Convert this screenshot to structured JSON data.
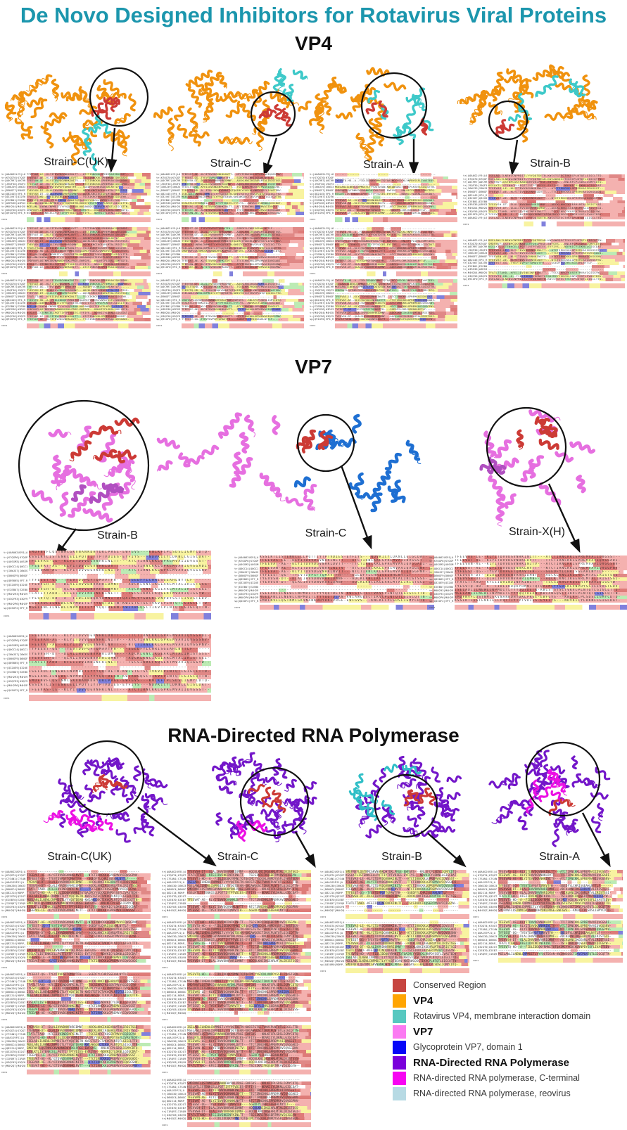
{
  "title": "De Novo Designed Inhibitors for Rotavirus Viral Proteins",
  "title_color": "#1B96AD",
  "sections": [
    {
      "id": "vp4",
      "title": "VP4",
      "strains": [
        "Strain-C(UK)",
        "Strain-C",
        "Strain-A",
        "Strain-B"
      ]
    },
    {
      "id": "vp7",
      "title": "VP7",
      "strains": [
        "Strain-B",
        "Strain-C",
        "Strain-X(H)"
      ]
    },
    {
      "id": "rdrp",
      "title": "RNA-Directed RNA Polymerase",
      "strains": [
        "Strain-C(UK)",
        "Strain-C",
        "Strain-B",
        "Strain-A"
      ]
    }
  ],
  "legend": {
    "items": [
      {
        "label": "Conserved Region",
        "color": "#C64540",
        "bold": false
      },
      {
        "label": "VP4",
        "color": "#FFA502",
        "bold": true
      },
      {
        "label": "Rotavirus VP4, membrane interaction domain",
        "color": "#57C8C0",
        "bold": false
      },
      {
        "label": "VP7",
        "color": "#FB7AF2",
        "bold": true
      },
      {
        "label": "Glycoprotein VP7, domain 1",
        "color": "#0707F8",
        "bold": false
      },
      {
        "label": "RNA-Directed RNA Polymerase",
        "color": "#7A00DB",
        "bold": true
      },
      {
        "label": "RNA-directed RNA polymerase, C-terminal",
        "color": "#F705F2",
        "bold": false
      },
      {
        "label": "RNA-directed RNA polymerase, reovirus",
        "color": "#B7DAE4",
        "bold": false
      }
    ]
  },
  "structure_colors": {
    "vp4_main": "#F0920E",
    "vp4_membrane": "#3EC9C9",
    "conserved": "#CC3A35",
    "vp7_main": "#E66FE0",
    "vp7_deep": "#B04FC0",
    "vp7_domain1": "#1E6FD2",
    "rdrp_main": "#7316C9",
    "rdrp_cterm": "#EC0FE4",
    "rdrp_reovirus": "#30BFC7"
  },
  "alignment": {
    "cons_label": "cons",
    "palette": {
      "yellow": "#F8F3A0",
      "pink": "#F4B1AF",
      "red": "#E08886",
      "deep": "#DE7B78",
      "green": "#BCEBB4",
      "blue": "#8080DC",
      "white": "#FFFFFF"
    },
    "profiles": {
      "yp": [
        [
          "yellow",
          30
        ],
        [
          "pink",
          25
        ],
        [
          "white",
          14
        ],
        [
          "green",
          7
        ],
        [
          "red",
          12
        ],
        [
          "blue",
          3
        ],
        [
          "deep",
          9
        ]
      ],
      "pink": [
        [
          "pink",
          48
        ],
        [
          "red",
          16
        ],
        [
          "deep",
          14
        ],
        [
          "yellow",
          12
        ],
        [
          "white",
          6
        ],
        [
          "green",
          3
        ],
        [
          "blue",
          1
        ]
      ],
      "pink2": [
        [
          "pink",
          42
        ],
        [
          "red",
          20
        ],
        [
          "deep",
          16
        ],
        [
          "yellow",
          12
        ],
        [
          "white",
          5
        ],
        [
          "green",
          3
        ],
        [
          "blue",
          2
        ]
      ],
      "mixed": [
        [
          "yellow",
          26
        ],
        [
          "green",
          14
        ],
        [
          "pink",
          30
        ],
        [
          "white",
          12
        ],
        [
          "red",
          10
        ],
        [
          "blue",
          4
        ],
        [
          "deep",
          4
        ]
      ],
      "yp2": [
        [
          "yellow",
          34
        ],
        [
          "pink",
          30
        ],
        [
          "white",
          10
        ],
        [
          "green",
          6
        ],
        [
          "red",
          12
        ],
        [
          "deep",
          6
        ],
        [
          "blue",
          2
        ]
      ]
    },
    "cons_patterns": {
      "vp4a": [
        [
          "green",
          6
        ],
        [
          "white",
          2
        ],
        [
          "blue",
          4
        ],
        [
          "white",
          2
        ],
        [
          "blue",
          5
        ],
        [
          "yellow",
          12
        ],
        [
          "pink",
          8
        ],
        [
          "red",
          4
        ],
        [
          "pink",
          57
        ]
      ],
      "vp4b": [
        [
          "white",
          26
        ],
        [
          "yellow",
          7
        ],
        [
          "white",
          6
        ],
        [
          "blue",
          3
        ],
        [
          "white",
          8
        ],
        [
          "pink",
          20
        ],
        [
          "yellow",
          6
        ],
        [
          "pink",
          24
        ]
      ],
      "vp4c": [
        [
          "pink",
          10
        ],
        [
          "green",
          4
        ],
        [
          "blue",
          5
        ],
        [
          "pink",
          6
        ],
        [
          "blue",
          5
        ],
        [
          "yellow",
          9
        ],
        [
          "pink",
          35
        ],
        [
          "yellow",
          8
        ],
        [
          "pink",
          18
        ]
      ],
      "vp7a": [
        [
          "pink",
          8
        ],
        [
          "blue",
          3
        ],
        [
          "pink",
          12
        ],
        [
          "blue",
          3
        ],
        [
          "pink",
          10
        ],
        [
          "yellow",
          22
        ],
        [
          "pink",
          6
        ],
        [
          "yellow",
          10
        ],
        [
          "white",
          4
        ],
        [
          "blue",
          4
        ],
        [
          "pink",
          14
        ],
        [
          "blue",
          4
        ]
      ],
      "vp7b": [
        [
          "pink",
          40
        ],
        [
          "yellow",
          14
        ],
        [
          "pink",
          12
        ],
        [
          "green",
          3
        ],
        [
          "pink",
          31
        ]
      ],
      "rd1": [
        [
          "pink",
          22
        ],
        [
          "green",
          4
        ],
        [
          "pink",
          16
        ],
        [
          "yellow",
          9
        ],
        [
          "pink",
          14
        ],
        [
          "green",
          3
        ],
        [
          "pink",
          32
        ]
      ],
      "rd2": [
        [
          "yellow",
          18
        ],
        [
          "pink",
          12
        ],
        [
          "yellow",
          22
        ],
        [
          "pink",
          10
        ],
        [
          "yellow",
          14
        ],
        [
          "pink",
          24
        ]
      ]
    },
    "id_sets": {
      "vp7": [
        "tr|A0A062US91|A",
        "tr|K7QGP6|K7QGP",
        "tr|A0SXM3|A0SXM",
        "tr|Q0GC14|Q0GC1",
        "tr|I6WJS7|I6WJS",
        "tr|D6NGF9|D6NGF",
        "sp|Q89865|VP7_R",
        "tr|Q32UE9|Q32UE",
        "tr|E2EBU7|E2EBU",
        "tr|M4H293|M4H29",
        "tr|U3QY93|U3QY9",
        "tr|M4H2P6|M4H2P",
        "sp|Q45UF2|VP7_R"
      ],
      "vp4": [
        "tr|A0A0G2LY9|L6",
        "tr|K7QG70|K7QGF",
        "tr|A0C9R7|A0C9R",
        "tr|J9QF30|J9QF3",
        "tr|I6WJ39|I6WJ3",
        "tr|D9NGF7|D9NGF",
        "sp|Q82445|VP4_R",
        "tr|Q32V67|Q32V6",
        "tr|E2EB01|E2EB0",
        "tr|A3RS36|A3RS3",
        "tr|M4H2U4|M4H2U",
        "tr|U3QY56|U3QY5",
        "sp|Q91GF0|VP4_R"
      ],
      "rdrp": [
        "tr|A0A0G2US91|A",
        "tr|K7QGT4|K7QGT",
        "tr|C7S4N1|C7S4N",
        "tr|A0A1S9PJ1|A",
        "tr|I6WJ30|I6WJ3",
        "tr|D6NGC4|D6NGC",
        "sp|Q82J14|RDRP_",
        "tr|Q32GT0|Q32GT",
        "tr|E2EB70|E2EB7",
        "tr|I1RQ97|I1RQ9",
        "tr|U3QY03|U3QY0",
        "tr|M4H2Q7|M4H2Q",
        "sp|Q45UR0|RDRP_"
      ]
    },
    "sequences": [
      "TFEEVAS-LE--KLYITDVVDGVNHKINLTT---ATCTIRNCKKLGPREMVAIIDVGSST--",
      "TFEEVAT-AE--KLYITDVVDGVNHKLDVTT---TTCTIRNCKKLGPREMVAVIQVGGADI-",
      "TFEEVAN-AE--KLYITDVVDGVNHKINITV---ATCTIRNCKKLGPREMVAVIQVGGSNV-",
      "TFEEVAT-AE--KLYITDVVDGVNHKLNVTT---NTCTIRNCKKLGPREMVAVIQVGGPNV-",
      "TYFEEST-QG--TYEVTDVPGFTQMAVTFH----SGEDFYLCHRISGEAHLNYTLF------",
      "TYEVVSH-DT--DLALIHVVDNVRHRIDMNF---ADCKLKNCIKGEARLMTALIRISTSSS-",
      "TYEVVSH-DT--QLALIHVVDNVRHRIQMNF---AQCKLKNCIKGEARLMTALIRISTSGI-",
      "TFATLTTAHD--KFEIIDVINDINFKINLTT---TSCSIKRCFKQSERTMVAVIQIGGYW--",
      "TYESVTQ-HD--A--FIDLIDDQKYRMNITQTQAIMCYYGDCKLVNPDYSSFLIVASTEDV-",
      "ISELADLILNEWLCNPMDITLYYYQQTDETN-KWISTGTSCTVKVCPLNTQTLGIGCLTTD-",
      "MGELANLILNEWLCNPMDITLYYYQQTDEAN-KWIAWGQSCTIKVCPLNTQTLGIGCQTTN-",
      "SMDFNVFLQSTNMCGKVNANKDHYDKLPRGE-EWFGVS---KNLKFCPLSDSLIGMYCDTQ-",
      "KSSLKTLISTENKCELLPQTTIYTPTVDIES-EYFIYS---NDVKICYLDKNLLGIGCDAT-"
    ]
  }
}
